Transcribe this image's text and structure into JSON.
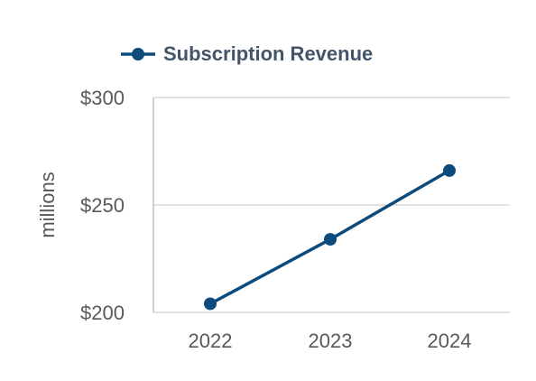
{
  "chart_data": {
    "type": "line",
    "x": [
      "2022",
      "2023",
      "2024"
    ],
    "series": [
      {
        "name": "Subscription Revenue",
        "values": [
          204,
          234,
          266
        ]
      }
    ],
    "xlabel": "",
    "ylabel": "millions",
    "ylim": [
      200,
      300
    ],
    "yticks": [
      {
        "value": 200,
        "label": "$200"
      },
      {
        "value": 250,
        "label": "$250"
      },
      {
        "value": 300,
        "label": "$300"
      }
    ],
    "grid": true,
    "legend": "top-left",
    "colors": {
      "series": "#0d4b7c",
      "grid": "#d9d9d9",
      "axis": "#bfbfbf"
    }
  }
}
